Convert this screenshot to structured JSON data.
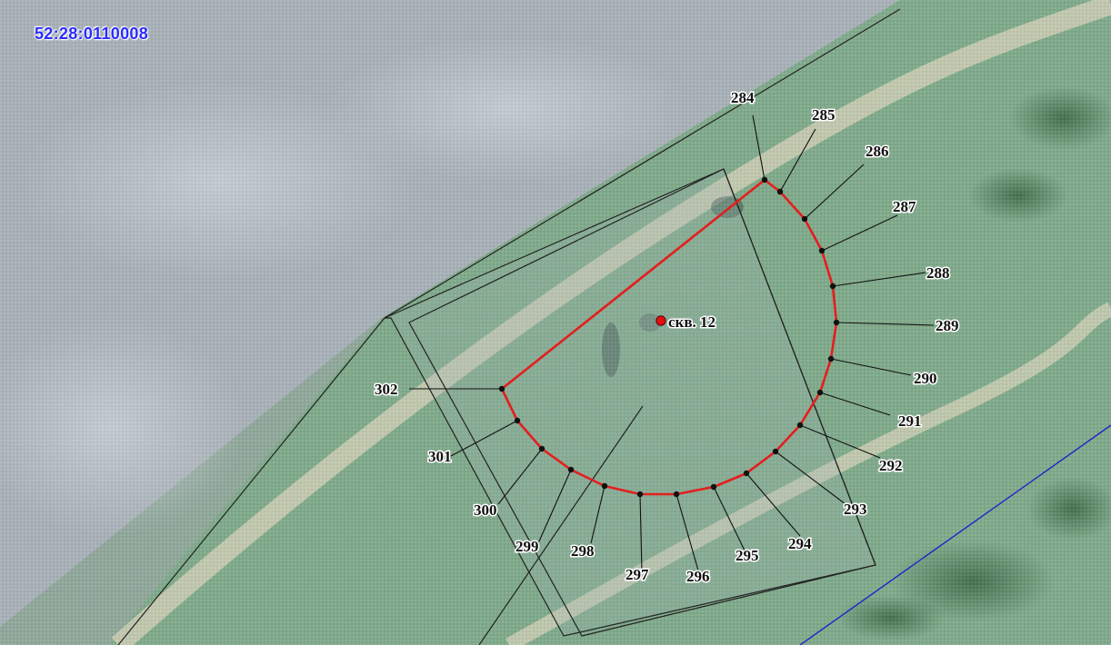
{
  "map": {
    "cadastral_id": "52:28:0110008",
    "well_label": "скв. 12",
    "colors": {
      "boundary": "#e41e1e",
      "vertex": "#111111",
      "blue_line": "#2222cc",
      "parcel_outline": "#222222",
      "well_marker": "#e01010"
    },
    "vertex_labels": [
      "284",
      "285",
      "286",
      "287",
      "288",
      "289",
      "290",
      "291",
      "292",
      "293",
      "294",
      "295",
      "296",
      "297",
      "298",
      "299",
      "300",
      "301",
      "302"
    ]
  }
}
